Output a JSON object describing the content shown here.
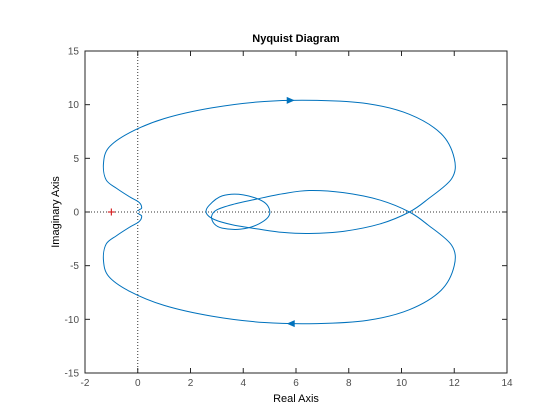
{
  "chart_data": {
    "type": "line",
    "title": "Nyquist Diagram",
    "xlabel": "Real Axis",
    "ylabel": "Imaginary Axis",
    "xlim": [
      -2,
      14
    ],
    "ylim": [
      -15,
      15
    ],
    "xticks": [
      -2,
      0,
      2,
      4,
      6,
      8,
      10,
      12,
      14
    ],
    "yticks": [
      -15,
      -10,
      -5,
      0,
      5,
      10,
      15
    ],
    "grid": false,
    "legend": "none",
    "colors": {
      "curve": "#0072BD",
      "critical_point": "#D62728",
      "axes": "#262626",
      "reference_lines": "#333333"
    },
    "critical_point": {
      "x": -1,
      "y": 0
    },
    "series": [
      {
        "x": [
          0.0,
          0.05,
          0.15,
          0.05,
          -0.3,
          -0.8,
          -1.2,
          -1.3,
          -1.1,
          -0.3,
          1.0,
          2.8,
          4.8,
          6.8,
          8.7,
          10.3,
          11.5,
          12.0,
          11.9,
          11.0,
          10.3,
          9.2,
          7.8,
          6.5,
          5.5,
          4.6,
          3.6,
          2.9,
          2.6,
          2.7,
          3.2,
          4.0,
          4.8,
          5.0,
          4.6,
          3.9,
          3.2,
          2.9,
          2.8,
          3.0,
          3.6,
          4.5,
          5.5,
          6.5,
          7.8,
          9.2,
          10.3,
          11.0,
          11.9,
          12.0,
          11.5,
          10.3,
          8.7,
          6.8,
          4.8,
          2.8,
          1.0,
          -0.3,
          -1.1,
          -1.3,
          -1.2,
          -0.8,
          -0.3,
          0.05,
          0.15,
          0.05,
          0.0
        ],
        "y": [
          0.1,
          0.2,
          0.4,
          0.9,
          1.4,
          2.2,
          3.0,
          4.5,
          6.0,
          7.4,
          8.7,
          9.7,
          10.3,
          10.4,
          10.1,
          9.1,
          7.3,
          5.0,
          3.1,
          1.2,
          0.0,
          -1.1,
          -1.8,
          -2.0,
          -1.9,
          -1.6,
          -1.2,
          -0.7,
          -0.1,
          0.6,
          1.5,
          1.6,
          0.9,
          -0.2,
          -1.1,
          -1.6,
          -1.5,
          -1.1,
          -0.4,
          0.2,
          0.7,
          1.2,
          1.7,
          2.0,
          1.8,
          1.1,
          0.0,
          -1.2,
          -3.1,
          -5.0,
          -7.3,
          -9.1,
          -10.1,
          -10.4,
          -10.3,
          -9.7,
          -8.7,
          -7.4,
          -6.0,
          -4.5,
          -3.0,
          -2.2,
          -1.4,
          -0.9,
          -0.4,
          -0.2,
          -0.1
        ]
      }
    ],
    "arrows": [
      {
        "x": 5.8,
        "y": 10.4,
        "direction": "right"
      },
      {
        "x": 5.8,
        "y": -10.4,
        "direction": "left"
      }
    ]
  }
}
